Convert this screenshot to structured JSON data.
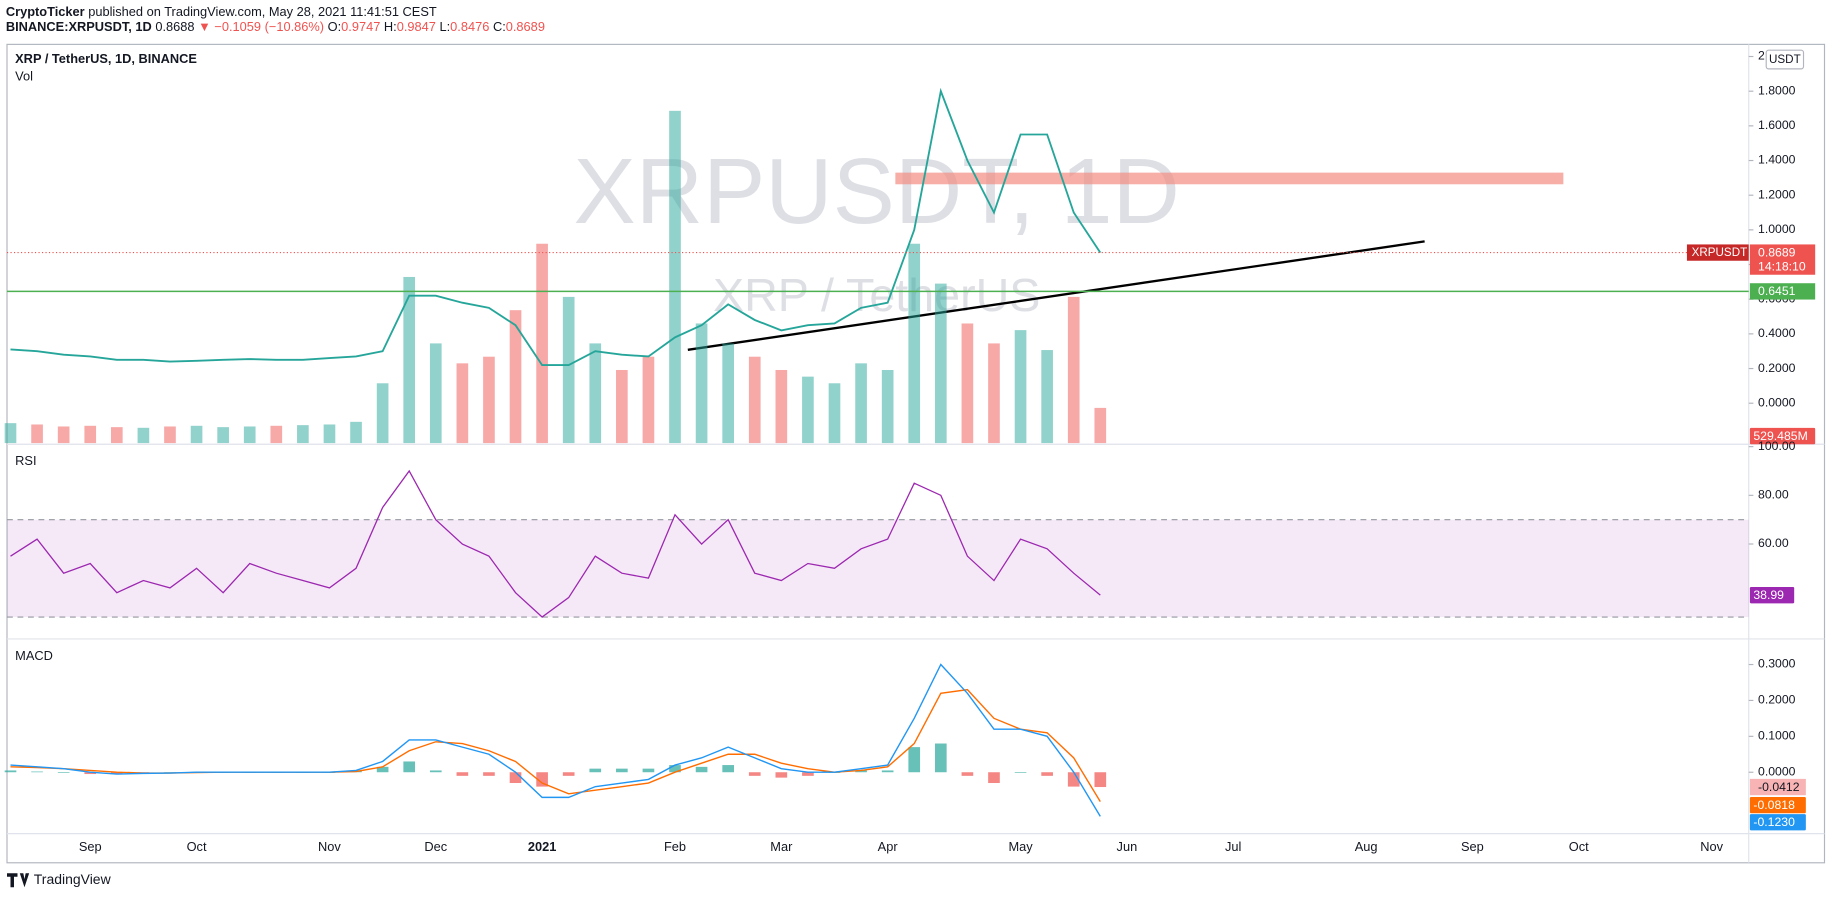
{
  "header": {
    "author": "CryptoTicker",
    "published": "published on TradingView.com, May 28, 2021 11:41:51 CEST",
    "symbol": "BINANCE:XRPUSDT, 1D",
    "price": 0.8688,
    "change": "▼ −0.1059 (−10.86%)",
    "ohlc": [
      {
        "label": "O:",
        "value": 0.9747
      },
      {
        "label": "H:",
        "value": 0.9847
      },
      {
        "label": "L:",
        "value": 0.8476
      },
      {
        "label": "C:",
        "value": 0.8689
      }
    ]
  },
  "chart_data": [
    {
      "type": "line",
      "title": "XRP / TetherUS, 1D, BINANCE",
      "watermark": [
        "XRPUSDT, 1D",
        "XRP / TetherUS"
      ],
      "currency": "USDT",
      "categories": [
        null,
        null,
        null,
        "Sep",
        null,
        null,
        null,
        "Oct",
        null,
        null,
        null,
        null,
        "Nov",
        null,
        null,
        null,
        "Dec",
        null,
        null,
        null,
        "2021",
        null,
        null,
        null,
        null,
        "Feb",
        null,
        null,
        null,
        "Mar",
        null,
        null,
        null,
        "Apr",
        null,
        null,
        null,
        null,
        "May",
        null,
        null,
        null,
        "Jun",
        null,
        null,
        null,
        "Jul",
        null,
        null,
        null,
        null,
        "Aug",
        null,
        null,
        null,
        "Sep",
        null,
        null,
        null,
        "Oct",
        null,
        null,
        null,
        null,
        "Nov"
      ],
      "series": [
        {
          "name": "XRPUSDT",
          "color": "#26a69a",
          "last_color": "#ef5350",
          "countdown": "14:18:10",
          "values": [
            0.31,
            0.3,
            0.28,
            0.27,
            0.25,
            0.25,
            0.24,
            0.245,
            0.25,
            0.255,
            0.25,
            0.25,
            0.26,
            0.27,
            0.3,
            0.62,
            0.62,
            0.58,
            0.55,
            0.45,
            0.22,
            0.22,
            0.3,
            0.28,
            0.27,
            0.38,
            0.45,
            0.57,
            0.48,
            0.42,
            0.45,
            0.46,
            0.55,
            0.58,
            1.0,
            1.8,
            1.4,
            1.1,
            1.55,
            1.55,
            1.1,
            0.8689,
            null,
            null,
            null,
            null,
            null,
            null,
            null,
            null,
            null,
            null,
            null,
            null,
            null,
            null,
            null,
            null,
            null,
            null,
            null,
            null,
            null,
            null,
            null
          ]
        }
      ],
      "volume": {
        "name": "Vol",
        "up_color": "#26a69a",
        "down_color": "#ef5350",
        "ylim": [
          0,
          6000000000
        ],
        "last_label": "529.485M",
        "values": [
          300000000,
          280000000,
          250000000,
          260000000,
          240000000,
          230000000,
          250000000,
          260000000,
          240000000,
          250000000,
          260000000,
          270000000,
          280000000,
          320000000,
          900000000,
          2500000000,
          1500000000,
          1200000000,
          1300000000,
          2000000000,
          3000000000,
          2200000000,
          1500000000,
          1100000000,
          1300000000,
          5000000000,
          1800000000,
          1500000000,
          1300000000,
          1100000000,
          1000000000,
          900000000,
          1200000000,
          1100000000,
          3000000000,
          2400000000,
          1800000000,
          1500000000,
          1700000000,
          1400000000,
          2200000000,
          529485000,
          null,
          null,
          null,
          null,
          null,
          null,
          null,
          null,
          null,
          null,
          null,
          null,
          null,
          null,
          null,
          null,
          null,
          null,
          null,
          null,
          null,
          null,
          null
        ]
      },
      "levels": [
        {
          "value": 0.6451,
          "color": "#4caf50"
        }
      ],
      "ylim": [
        -0.23,
        2.07
      ],
      "yticks": [
        2,
        {
          "value": 1.8,
          "label": "1.8000"
        },
        {
          "value": 1.6,
          "label": "1.6000"
        },
        {
          "value": 1.4,
          "label": "1.4000"
        },
        {
          "value": 1.2,
          "label": "1.2000"
        },
        {
          "value": 1.0,
          "label": "1.0000"
        },
        {
          "value": 0.8,
          "label": "0.8000"
        },
        {
          "value": 0.6,
          "label": "0.6000"
        },
        {
          "value": 0.4,
          "label": "0.4000"
        },
        {
          "value": 0.2,
          "label": "0.2000"
        },
        {
          "value": 0,
          "label": "0.0000"
        }
      ]
    },
    {
      "type": "line",
      "title": "RSI",
      "band": [
        30,
        70
      ],
      "band_color": "#9c27b0",
      "series": [
        {
          "name": "RSI",
          "color": "#9c27b0",
          "last_label": "38.99",
          "values": [
            55,
            62,
            48,
            52,
            40,
            45,
            42,
            50,
            40,
            52,
            48,
            45,
            42,
            50,
            75,
            90,
            70,
            60,
            55,
            40,
            30,
            38,
            55,
            48,
            46,
            72,
            60,
            70,
            48,
            45,
            52,
            50,
            58,
            62,
            85,
            80,
            55,
            45,
            62,
            58,
            48,
            38.99,
            null,
            null,
            null,
            null,
            null,
            null,
            null,
            null,
            null,
            null,
            null,
            null,
            null,
            null,
            null,
            null,
            null,
            null,
            null,
            null,
            null,
            null,
            null
          ]
        }
      ],
      "ylim": [
        21,
        100.5
      ],
      "yticks": [
        {
          "value": 100,
          "label": "100.00"
        },
        {
          "value": 80,
          "label": "80.00"
        },
        {
          "value": 60,
          "label": "60.00"
        }
      ]
    },
    {
      "type": "macd",
      "title": "MACD",
      "histogram": {
        "up_color": "#26a69a",
        "down_color": "#ef5350",
        "label_color": "#f8b4b4",
        "last_label": "-0.0412",
        "values": [
          0.005,
          0.002,
          0,
          -0.005,
          -0.005,
          -0.001,
          0,
          0.001,
          0,
          0,
          0,
          0,
          0,
          0.003,
          0.015,
          0.03,
          0.005,
          -0.01,
          -0.01,
          -0.03,
          -0.04,
          -0.01,
          0.01,
          0.01,
          0.01,
          0.02,
          0.015,
          0.02,
          -0.01,
          -0.015,
          -0.01,
          0,
          0.005,
          0.005,
          0.07,
          0.08,
          -0.01,
          -0.03,
          0,
          -0.01,
          -0.04,
          -0.0412,
          null,
          null,
          null,
          null,
          null,
          null,
          null,
          null,
          null,
          null,
          null,
          null,
          null,
          null,
          null,
          null,
          null,
          null,
          null,
          null,
          null,
          null,
          null
        ]
      },
      "series": [
        {
          "name": "Signal",
          "color": "#ff6d00",
          "last_label": "-0.0818",
          "values": [
            0.015,
            0.013,
            0.01,
            0.005,
            0,
            -0.002,
            -0.002,
            -0.001,
            0,
            0,
            0,
            0,
            0,
            0.002,
            0.015,
            0.06,
            0.085,
            0.08,
            0.06,
            0.03,
            -0.03,
            -0.06,
            -0.05,
            -0.04,
            -0.03,
            0,
            0.025,
            0.05,
            0.05,
            0.025,
            0.01,
            0,
            0.005,
            0.015,
            0.08,
            0.22,
            0.23,
            0.15,
            0.12,
            0.11,
            0.04,
            -0.0818,
            null,
            null,
            null,
            null,
            null,
            null,
            null,
            null,
            null,
            null,
            null,
            null,
            null,
            null,
            null,
            null,
            null,
            null,
            null,
            null,
            null,
            null,
            null
          ]
        },
        {
          "name": "MACD",
          "color": "#2196f3",
          "last_label": "-0.1230",
          "values": [
            0.02,
            0.015,
            0.01,
            0,
            -0.005,
            -0.003,
            -0.002,
            0,
            0,
            0,
            0,
            0,
            0,
            0.005,
            0.03,
            0.09,
            0.09,
            0.07,
            0.05,
            0,
            -0.07,
            -0.07,
            -0.04,
            -0.03,
            -0.02,
            0.02,
            0.04,
            0.07,
            0.04,
            0.01,
            0,
            0,
            0.01,
            0.02,
            0.15,
            0.3,
            0.22,
            0.12,
            0.12,
            0.1,
            0,
            -0.123,
            null,
            null,
            null,
            null,
            null,
            null,
            null,
            null,
            null,
            null,
            null,
            null,
            null,
            null,
            null,
            null,
            null,
            null,
            null,
            null,
            null,
            null,
            null
          ]
        }
      ],
      "ylim": [
        -0.171,
        0.368
      ],
      "yticks": [
        {
          "value": 0.3,
          "label": "0.3000"
        },
        {
          "value": 0.2,
          "label": "0.2000"
        },
        {
          "value": 0.1,
          "label": "0.1000"
        },
        {
          "value": 0,
          "label": "0.0000"
        }
      ]
    }
  ],
  "footer": {
    "brand": "TradingView"
  }
}
